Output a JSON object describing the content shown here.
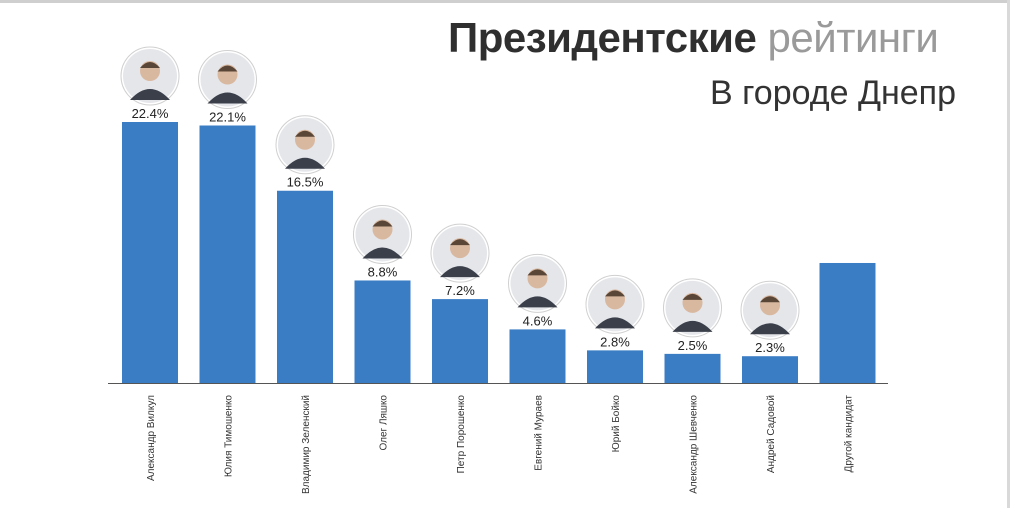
{
  "title": {
    "bold": "Президентские",
    "light": "рейтинги"
  },
  "subtitle": "В городе Днепр",
  "chart_data": {
    "type": "bar",
    "categories": [
      "Александр Вилкул",
      "Юлия Тимошенко",
      "Владимир Зеленский",
      "Олег Ляшко",
      "Петр Порошенко",
      "Евгений Мураев",
      "Юрий Бойко",
      "Александр Шевченко",
      "Андрей Садовой",
      "Другой кандидат"
    ],
    "values": [
      22.4,
      22.1,
      16.5,
      8.8,
      7.2,
      4.6,
      2.8,
      2.5,
      2.3,
      10.3
    ],
    "labels": [
      "22.4%",
      "22.1%",
      "16.5%",
      "8.8%",
      "7.2%",
      "4.6%",
      "2.8%",
      "2.5%",
      "2.3%",
      ""
    ],
    "photos": [
      true,
      true,
      true,
      true,
      true,
      true,
      true,
      true,
      true,
      false
    ],
    "ylim": [
      0,
      22.4
    ],
    "grid": false,
    "bar_color": "#3b7dc4"
  }
}
